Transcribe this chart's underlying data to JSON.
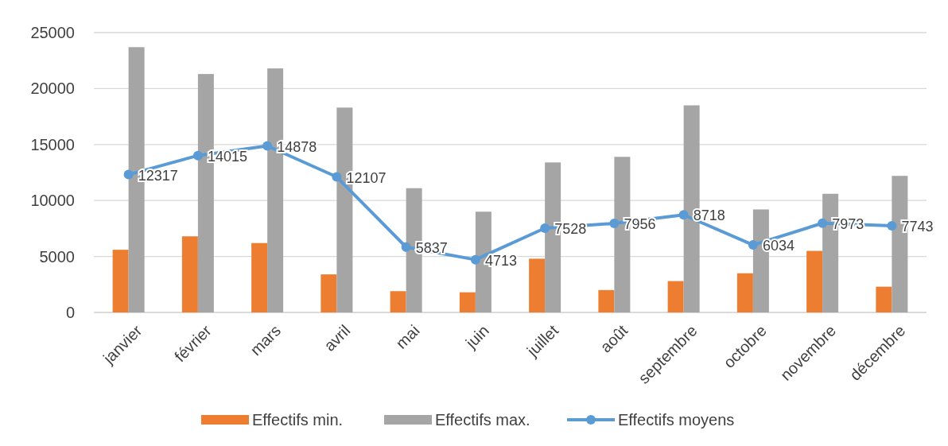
{
  "chart_data": {
    "type": "bar",
    "categories": [
      "janvier",
      "février",
      "mars",
      "avril",
      "mai",
      "juin",
      "juillet",
      "août",
      "septembre",
      "octobre",
      "novembre",
      "décembre"
    ],
    "series": [
      {
        "name": "Effectifs min.",
        "color": "#ed7d31",
        "values": [
          5600,
          6800,
          6200,
          3400,
          1900,
          1800,
          4800,
          2000,
          2800,
          3500,
          5500,
          2300
        ]
      },
      {
        "name": "Effectifs max.",
        "color": "#a5a5a5",
        "values": [
          23700,
          21300,
          21800,
          18300,
          11100,
          9000,
          13400,
          13900,
          18500,
          9200,
          10600,
          12200
        ]
      },
      {
        "name": "Effectifs moyens",
        "type": "line",
        "color": "#5b9bd5",
        "marker": "circle",
        "data_labels": true,
        "values": [
          12317,
          14015,
          14878,
          12107,
          5837,
          4713,
          7528,
          7956,
          8718,
          6034,
          7973,
          7743
        ]
      }
    ],
    "ylim": [
      0,
      25000
    ],
    "yticks": [
      0,
      5000,
      10000,
      15000,
      20000,
      25000
    ],
    "grid": "y",
    "legend": "bottom"
  }
}
